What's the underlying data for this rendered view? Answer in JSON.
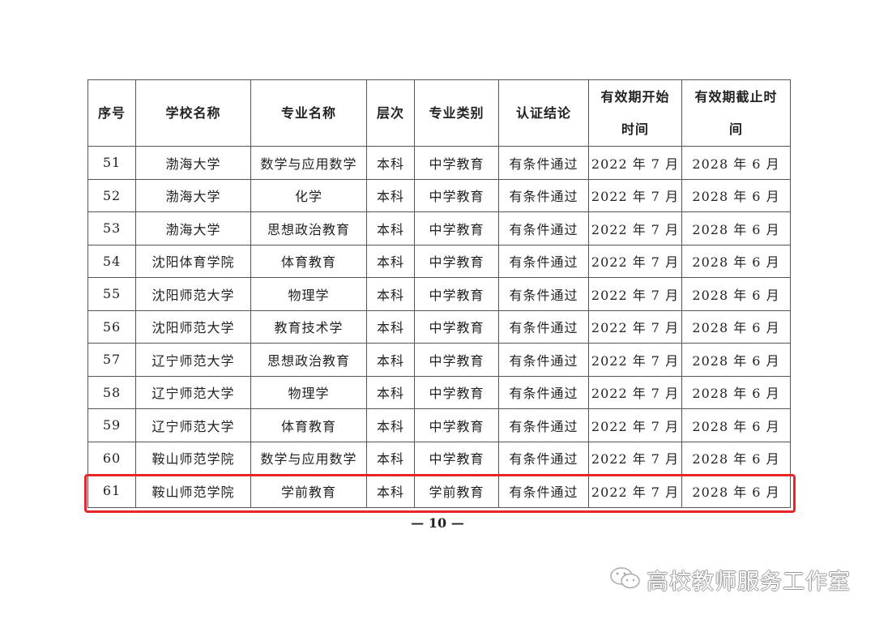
{
  "table": {
    "headers": [
      "序号",
      "学校名称",
      "专业名称",
      "层次",
      "专业类别",
      "认证结论",
      "有效期开始时间",
      "有效期截止时间"
    ],
    "header_lines": [
      [
        "序号"
      ],
      [
        "学校名称"
      ],
      [
        "专业名称"
      ],
      [
        "层次"
      ],
      [
        "专业类别"
      ],
      [
        "认证结论"
      ],
      [
        "有效期开始",
        "时间"
      ],
      [
        "有效期截止时",
        "间"
      ]
    ],
    "rows": [
      [
        "51",
        "渤海大学",
        "数学与应用数学",
        "本科",
        "中学教育",
        "有条件通过",
        "2022 年 7 月",
        "2028 年 6 月"
      ],
      [
        "52",
        "渤海大学",
        "化学",
        "本科",
        "中学教育",
        "有条件通过",
        "2022 年 7 月",
        "2028 年 6 月"
      ],
      [
        "53",
        "渤海大学",
        "思想政治教育",
        "本科",
        "中学教育",
        "有条件通过",
        "2022 年 7 月",
        "2028 年 6 月"
      ],
      [
        "54",
        "沈阳体育学院",
        "体育教育",
        "本科",
        "中学教育",
        "有条件通过",
        "2022 年 7 月",
        "2028 年 6 月"
      ],
      [
        "55",
        "沈阳师范大学",
        "物理学",
        "本科",
        "中学教育",
        "有条件通过",
        "2022 年 7 月",
        "2028 年 6 月"
      ],
      [
        "56",
        "沈阳师范大学",
        "教育技术学",
        "本科",
        "中学教育",
        "有条件通过",
        "2022 年 7 月",
        "2028 年 6 月"
      ],
      [
        "57",
        "辽宁师范大学",
        "思想政治教育",
        "本科",
        "中学教育",
        "有条件通过",
        "2022 年 7 月",
        "2028 年 6 月"
      ],
      [
        "58",
        "辽宁师范大学",
        "物理学",
        "本科",
        "中学教育",
        "有条件通过",
        "2022 年 7 月",
        "2028 年 6 月"
      ],
      [
        "59",
        "辽宁师范大学",
        "体育教育",
        "本科",
        "中学教育",
        "有条件通过",
        "2022 年 7 月",
        "2028 年 6 月"
      ],
      [
        "60",
        "鞍山师范学院",
        "数学与应用数学",
        "本科",
        "中学教育",
        "有条件通过",
        "2022 年 7 月",
        "2028 年 6 月"
      ],
      [
        "61",
        "鞍山师范学院",
        "学前教育",
        "本科",
        "学前教育",
        "有条件通过",
        "2022 年 7 月",
        "2028 年 6 月"
      ]
    ],
    "highlighted_row": "61",
    "highlight_color": "#e8252a"
  },
  "page_number": "— 10 —",
  "watermark": {
    "icon": "wechat-icon",
    "text": "高校教师服务工作室"
  }
}
